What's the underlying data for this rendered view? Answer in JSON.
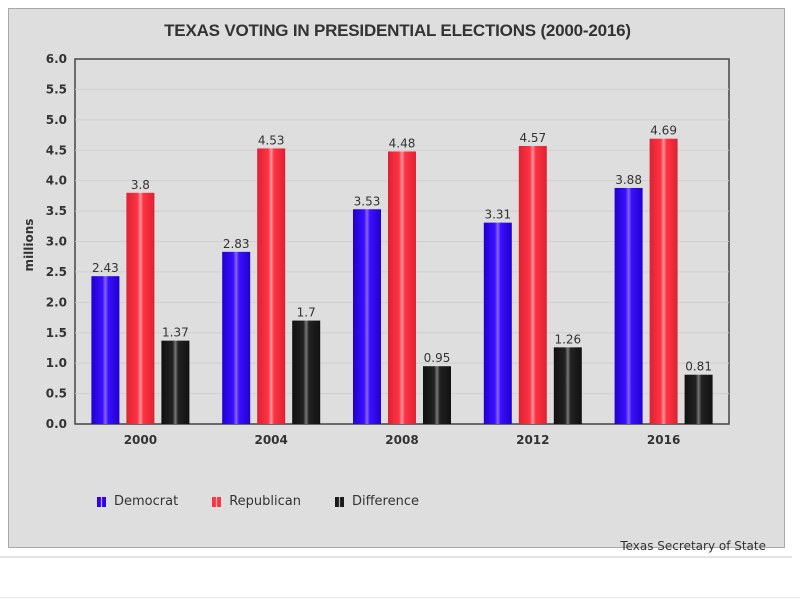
{
  "chart_data": {
    "type": "bar",
    "title": "TEXAS VOTING IN PRESIDENTIAL ELECTIONS (2000-2016)",
    "xlabel": "",
    "ylabel": "millions",
    "ylim": [
      0,
      6.0
    ],
    "yticks": [
      "0.0",
      "0.5",
      "1.0",
      "1.5",
      "2.0",
      "2.5",
      "3.0",
      "3.5",
      "4.0",
      "4.5",
      "5.0",
      "5.5",
      "6.0"
    ],
    "grid": true,
    "legend_position": "bottom-left",
    "categories": [
      "2000",
      "2004",
      "2008",
      "2012",
      "2016"
    ],
    "series": [
      {
        "name": "Democrat",
        "color": "#3300ee",
        "values": [
          2.43,
          2.83,
          3.53,
          3.31,
          3.88
        ],
        "labels": [
          "2.43",
          "2.83",
          "3.53",
          "3.31",
          "3.88"
        ]
      },
      {
        "name": "Republican",
        "color": "#ff3344",
        "values": [
          3.8,
          4.53,
          4.48,
          4.57,
          4.69
        ],
        "labels": [
          "3.8",
          "4.53",
          "4.48",
          "4.57",
          "4.69"
        ]
      },
      {
        "name": "Difference",
        "color": "#1a1a1a",
        "values": [
          1.37,
          1.7,
          0.95,
          1.26,
          0.81
        ],
        "labels": [
          "1.37",
          "1.7",
          "0.95",
          "1.26",
          "0.81"
        ]
      }
    ],
    "source": "Texas Secretary of State"
  }
}
